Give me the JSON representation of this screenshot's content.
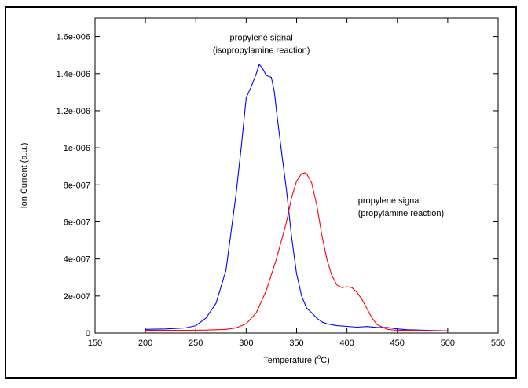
{
  "chart_data": {
    "type": "line",
    "xlabel_main": "Temperature (",
    "xlabel_sup": "o",
    "xlabel_end": "C)",
    "ylabel": "Ion Current (a.u.)",
    "xlim": [
      150,
      550
    ],
    "ylim": [
      0,
      1.7e-06
    ],
    "xticks": [
      150,
      200,
      250,
      300,
      350,
      400,
      450,
      500,
      550
    ],
    "yticks": [
      0,
      2e-07,
      4e-07,
      6e-07,
      8e-07,
      1e-06,
      1.2e-06,
      1.4e-06,
      1.6e-06
    ],
    "ytick_labels": [
      "0",
      "2e-007",
      "4e-007",
      "6e-007",
      "8e-007",
      "1e-006",
      "1.2e-006",
      "1.4e-006",
      "1.6e-006"
    ],
    "series": [
      {
        "name": "propylene signal (isopropylamine reaction)",
        "color": "#0000ff",
        "x": [
          200,
          220,
          240,
          250,
          260,
          270,
          280,
          290,
          295,
          300,
          305,
          310,
          313,
          316,
          320,
          325,
          328,
          330,
          335,
          340,
          345,
          350,
          355,
          360,
          365,
          370,
          375,
          380,
          390,
          400,
          410,
          420,
          430,
          440,
          450,
          460,
          480,
          500
        ],
        "y": [
          2e-08,
          2.2e-08,
          2.8e-08,
          4e-08,
          8e-08,
          1.6e-07,
          3.4e-07,
          7.5e-07,
          1e-06,
          1.27e-06,
          1.33e-06,
          1.4e-06,
          1.45e-06,
          1.43e-06,
          1.39e-06,
          1.38e-06,
          1.3e-06,
          1.2e-06,
          9.8e-07,
          7.7e-07,
          5.2e-07,
          3.2e-07,
          2e-07,
          1.35e-07,
          1.1e-07,
          8e-08,
          6e-08,
          5e-08,
          4e-08,
          3.6e-08,
          3.2e-08,
          3.5e-08,
          3e-08,
          3e-08,
          2.2e-08,
          1.8e-08,
          1.5e-08,
          1.2e-08
        ]
      },
      {
        "name": "propylene signal (propylamine reaction)",
        "color": "#ff0000",
        "x": [
          200,
          220,
          240,
          260,
          280,
          290,
          300,
          310,
          320,
          330,
          340,
          345,
          350,
          355,
          358,
          360,
          365,
          370,
          375,
          380,
          385,
          390,
          395,
          400,
          405,
          410,
          415,
          420,
          425,
          430,
          440,
          450,
          460,
          470,
          480,
          490,
          500
        ],
        "y": [
          1.5e-08,
          1.5e-08,
          1.5e-08,
          1.6e-08,
          2e-08,
          2.8e-08,
          5e-08,
          1.1e-07,
          2.3e-07,
          4e-07,
          6e-07,
          7.3e-07,
          8.2e-07,
          8.6e-07,
          8.65e-07,
          8.6e-07,
          8.1e-07,
          6.9e-07,
          5.3e-07,
          4e-07,
          3.1e-07,
          2.6e-07,
          2.45e-07,
          2.5e-07,
          2.45e-07,
          2.2e-07,
          1.8e-07,
          1.3e-07,
          8e-08,
          4.5e-08,
          2e-08,
          1.5e-08,
          1.5e-08,
          1.4e-08,
          1.3e-08,
          1.2e-08,
          1.2e-08
        ]
      }
    ],
    "annotations": [
      {
        "lines": [
          "propylene signal",
          "(isopropylamine reaction)"
        ],
        "anchor_x": 315,
        "anchor_y": 1.58e-06
      },
      {
        "lines": [
          "propylene signal",
          "(propylamine reaction)"
        ],
        "anchor_x": 411,
        "anchor_y": 7e-07
      }
    ]
  }
}
